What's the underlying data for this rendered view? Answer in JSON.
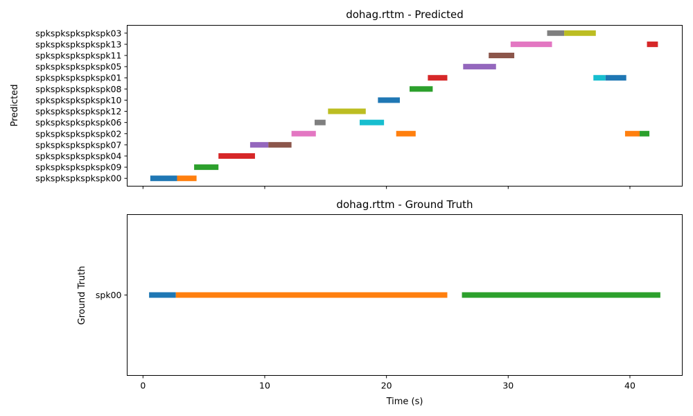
{
  "chart_data": [
    {
      "type": "timeline",
      "title": "dohag.rttm - Predicted",
      "ylabel": "Predicted",
      "xlabel": "",
      "xlim": [
        -1.3,
        44.3
      ],
      "xticks": [
        0,
        10,
        20,
        30,
        40
      ],
      "show_x_tick_labels": false,
      "grid": false,
      "categories": [
        "spkspkspkspkspk00",
        "spkspkspkspkspk09",
        "spkspkspkspkspk04",
        "spkspkspkspkspk07",
        "spkspkspkspkspk02",
        "spkspkspkspkspk06",
        "spkspkspkspkspk12",
        "spkspkspkspkspk10",
        "spkspkspkspkspk08",
        "spkspkspkspkspk01",
        "spkspkspkspkspk05",
        "spkspkspkspkspk11",
        "spkspkspkspkspk13",
        "spkspkspkspkspk03"
      ],
      "segments": [
        {
          "speaker": "spkspkspkspkspk00",
          "start": 0.6,
          "end": 2.8,
          "color": "#1f77b4"
        },
        {
          "speaker": "spkspkspkspkspk00",
          "start": 2.8,
          "end": 4.4,
          "color": "#ff7f0e"
        },
        {
          "speaker": "spkspkspkspkspk09",
          "start": 4.2,
          "end": 6.2,
          "color": "#2ca02c"
        },
        {
          "speaker": "spkspkspkspkspk04",
          "start": 6.2,
          "end": 9.2,
          "color": "#d62728"
        },
        {
          "speaker": "spkspkspkspkspk07",
          "start": 8.8,
          "end": 10.3,
          "color": "#9467bd"
        },
        {
          "speaker": "spkspkspkspkspk07",
          "start": 10.3,
          "end": 12.2,
          "color": "#8c564b"
        },
        {
          "speaker": "spkspkspkspkspk02",
          "start": 12.2,
          "end": 14.2,
          "color": "#e377c2"
        },
        {
          "speaker": "spkspkspkspkspk06",
          "start": 14.1,
          "end": 15.0,
          "color": "#7f7f7f"
        },
        {
          "speaker": "spkspkspkspkspk12",
          "start": 15.2,
          "end": 18.3,
          "color": "#bcbd22"
        },
        {
          "speaker": "spkspkspkspkspk06",
          "start": 17.8,
          "end": 19.8,
          "color": "#17becf"
        },
        {
          "speaker": "spkspkspkspkspk10",
          "start": 19.3,
          "end": 21.1,
          "color": "#1f77b4"
        },
        {
          "speaker": "spkspkspkspkspk02",
          "start": 20.8,
          "end": 22.4,
          "color": "#ff7f0e"
        },
        {
          "speaker": "spkspkspkspkspk08",
          "start": 21.9,
          "end": 23.8,
          "color": "#2ca02c"
        },
        {
          "speaker": "spkspkspkspkspk01",
          "start": 23.4,
          "end": 25.0,
          "color": "#d62728"
        },
        {
          "speaker": "spkspkspkspkspk05",
          "start": 26.3,
          "end": 29.0,
          "color": "#9467bd"
        },
        {
          "speaker": "spkspkspkspkspk11",
          "start": 28.4,
          "end": 30.5,
          "color": "#8c564b"
        },
        {
          "speaker": "spkspkspkspkspk13",
          "start": 30.2,
          "end": 33.6,
          "color": "#e377c2"
        },
        {
          "speaker": "spkspkspkspkspk03",
          "start": 33.2,
          "end": 34.6,
          "color": "#7f7f7f"
        },
        {
          "speaker": "spkspkspkspkspk03",
          "start": 34.6,
          "end": 37.2,
          "color": "#bcbd22"
        },
        {
          "speaker": "spkspkspkspkspk01",
          "start": 37.0,
          "end": 38.0,
          "color": "#17becf"
        },
        {
          "speaker": "spkspkspkspkspk01",
          "start": 38.0,
          "end": 39.7,
          "color": "#1f77b4"
        },
        {
          "speaker": "spkspkspkspkspk02",
          "start": 39.6,
          "end": 40.8,
          "color": "#ff7f0e"
        },
        {
          "speaker": "spkspkspkspkspk02",
          "start": 40.8,
          "end": 41.6,
          "color": "#2ca02c"
        },
        {
          "speaker": "spkspkspkspkspk13",
          "start": 41.4,
          "end": 42.3,
          "color": "#d62728"
        }
      ]
    },
    {
      "type": "timeline",
      "title": "dohag.rttm - Ground Truth",
      "ylabel": "Ground Truth",
      "xlabel": "Time (s)",
      "xlim": [
        -1.3,
        44.3
      ],
      "xticks": [
        0,
        10,
        20,
        30,
        40
      ],
      "show_x_tick_labels": true,
      "grid": false,
      "categories": [
        "spk00"
      ],
      "segments": [
        {
          "speaker": "spk00",
          "start": 0.5,
          "end": 2.7,
          "color": "#1f77b4"
        },
        {
          "speaker": "spk00",
          "start": 2.7,
          "end": 25.0,
          "color": "#ff7f0e"
        },
        {
          "speaker": "spk00",
          "start": 26.2,
          "end": 42.5,
          "color": "#2ca02c"
        }
      ]
    }
  ]
}
